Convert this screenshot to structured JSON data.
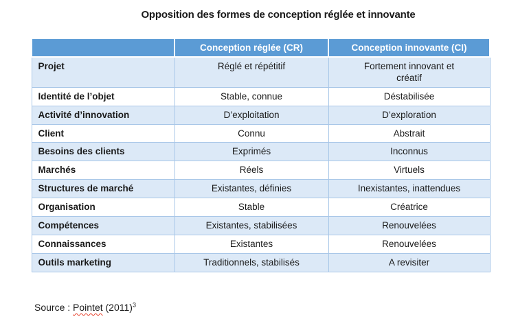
{
  "title": "Opposition des formes de conception réglée et innovante",
  "table": {
    "columns": [
      "",
      "Conception réglée (CR)",
      "Conception innovante (CI)"
    ],
    "rows": [
      {
        "label": "Projet",
        "cr": "Réglé et répétitif",
        "ci": "Fortement innovant et\ncréatif"
      },
      {
        "label": "Identité de l’objet",
        "cr": "Stable, connue",
        "ci": "Déstabilisée"
      },
      {
        "label": "Activité d’innovation",
        "cr": "D’exploitation",
        "ci": "D’exploration"
      },
      {
        "label": "Client",
        "cr": "Connu",
        "ci": "Abstrait"
      },
      {
        "label": "Besoins des clients",
        "cr": "Exprimés",
        "ci": "Inconnus"
      },
      {
        "label": "Marchés",
        "cr": "Réels",
        "ci": "Virtuels"
      },
      {
        "label": "Structures de marché",
        "cr": "Existantes, définies",
        "ci": "Inexistantes, inattendues"
      },
      {
        "label": "Organisation",
        "cr": "Stable",
        "ci": "Créatrice"
      },
      {
        "label": "Compétences",
        "cr": "Existantes, stabilisées",
        "ci": "Renouvelées"
      },
      {
        "label": "Connaissances",
        "cr": "Existantes",
        "ci": "Renouvelées"
      },
      {
        "label": "Outils marketing",
        "cr": "Traditionnels, stabilisés",
        "ci": "A revisiter"
      }
    ]
  },
  "source": {
    "prefix": "Source : ",
    "word": "Pointet",
    "suffix": " (2011)",
    "footnote": "3"
  },
  "colors": {
    "header_bg": "#5B9BD5",
    "header_text": "#FFFFFF",
    "band_bg": "#DCE9F7",
    "border": "#A9C7E8",
    "text": "#1A1A1A",
    "squiggle": "#E8402A"
  }
}
